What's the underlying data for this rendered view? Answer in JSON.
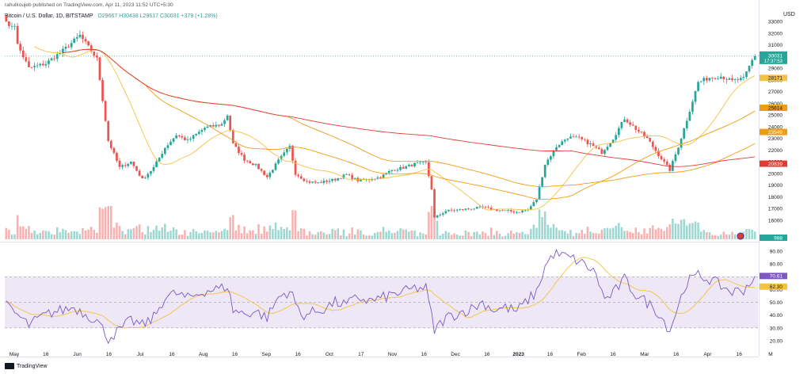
{
  "header": {
    "published": "rahulkoujeb published on TradingView.com, Apr 11, 2023 11:52 UTC+5:30",
    "symbol": "Bitcoin / U.S. Dollar, 1D, BITSTAMP",
    "ohlc": "O29667 H30438 L29617 C30031 +379 (+1.28%)",
    "currency": "USD"
  },
  "footer": {
    "brand": "TradingView"
  },
  "colors": {
    "up": "#26a69a",
    "down": "#ef5350",
    "ma_yellow": "#f5c242",
    "ma_orange": "#f39c12",
    "ma_red": "#e53935",
    "rsi": "#7e57c2",
    "rsi_band": "#ede7f6"
  },
  "chart_data": [
    {
      "type": "candlestick",
      "title": "Bitcoin / U.S. Dollar, 1D, BITSTAMP",
      "ylabel": "USD",
      "ylim": [
        15000,
        33000
      ],
      "yticks": [
        16000,
        17000,
        18000,
        19000,
        20000,
        21000,
        22000,
        23000,
        24000,
        25000,
        26000,
        27000,
        28000,
        29000,
        31000,
        32000,
        33000
      ],
      "x_ticks": [
        "May",
        "16",
        "Jun",
        "16",
        "Jul",
        "16",
        "Aug",
        "16",
        "Sep",
        "16",
        "Oct",
        "17",
        "Nov",
        "16",
        "Dec",
        "16",
        "2023",
        "16",
        "Feb",
        "16",
        "Mar",
        "16",
        "Apr",
        "16",
        "M"
      ],
      "last_price": 30031,
      "last_price_label": "30031",
      "countdown_label": "17:37:53",
      "anchors": [
        [
          0,
          39000
        ],
        [
          4,
          31000
        ],
        [
          8,
          29000
        ],
        [
          14,
          29400
        ],
        [
          20,
          30500
        ],
        [
          26,
          31800
        ],
        [
          32,
          29800
        ],
        [
          36,
          22800
        ],
        [
          40,
          20500
        ],
        [
          44,
          21000
        ],
        [
          48,
          19500
        ],
        [
          52,
          20500
        ],
        [
          56,
          22200
        ],
        [
          60,
          23300
        ],
        [
          64,
          22800
        ],
        [
          70,
          23900
        ],
        [
          76,
          24200
        ],
        [
          78,
          25000
        ],
        [
          80,
          22500
        ],
        [
          84,
          21200
        ],
        [
          88,
          20700
        ],
        [
          92,
          19700
        ],
        [
          96,
          21100
        ],
        [
          100,
          22300
        ],
        [
          102,
          20000
        ],
        [
          106,
          19300
        ],
        [
          110,
          19200
        ],
        [
          116,
          19500
        ],
        [
          120,
          19900
        ],
        [
          124,
          19400
        ],
        [
          128,
          19500
        ],
        [
          132,
          19700
        ],
        [
          136,
          20300
        ],
        [
          140,
          20500
        ],
        [
          144,
          20800
        ],
        [
          148,
          20900
        ],
        [
          150,
          18700
        ],
        [
          151,
          16200
        ],
        [
          155,
          16800
        ],
        [
          160,
          16900
        ],
        [
          164,
          17000
        ],
        [
          168,
          17100
        ],
        [
          172,
          16900
        ],
        [
          176,
          16800
        ],
        [
          180,
          16700
        ],
        [
          184,
          16900
        ],
        [
          187,
          17800
        ],
        [
          190,
          20800
        ],
        [
          194,
          22300
        ],
        [
          198,
          23100
        ],
        [
          202,
          23000
        ],
        [
          206,
          22500
        ],
        [
          210,
          21800
        ],
        [
          214,
          23000
        ],
        [
          218,
          24700
        ],
        [
          222,
          23800
        ],
        [
          226,
          23000
        ],
        [
          230,
          21600
        ],
        [
          234,
          20300
        ],
        [
          237,
          22300
        ],
        [
          240,
          24600
        ],
        [
          244,
          27800
        ],
        [
          248,
          28200
        ],
        [
          252,
          28300
        ],
        [
          256,
          27900
        ],
        [
          260,
          28100
        ],
        [
          264,
          30200
        ]
      ],
      "volume_label": "988",
      "moving_averages": [
        {
          "value": 28171,
          "label": "28171"
        },
        {
          "value": 25614,
          "label": "25614"
        },
        {
          "value": 23549,
          "label": "23549"
        },
        {
          "value": 20839,
          "label": "20839"
        }
      ]
    },
    {
      "type": "line",
      "title": "RSI",
      "ylim": [
        10,
        100
      ],
      "yticks": [
        20.0,
        30.0,
        40.0,
        50.0,
        60.0,
        70.0,
        80.0,
        90.0
      ],
      "ytick_labels": [
        "20.00",
        "30.00",
        "40.00",
        "50.00",
        "60.00",
        "",
        "80.00",
        "90.00"
      ],
      "bands": [
        30,
        70
      ],
      "mid": 50,
      "anchors": [
        [
          0,
          47
        ],
        [
          4,
          40
        ],
        [
          8,
          32
        ],
        [
          12,
          38
        ],
        [
          16,
          42
        ],
        [
          20,
          44
        ],
        [
          24,
          46
        ],
        [
          28,
          41
        ],
        [
          32,
          36
        ],
        [
          36,
          22
        ],
        [
          40,
          28
        ],
        [
          44,
          36
        ],
        [
          48,
          32
        ],
        [
          52,
          38
        ],
        [
          56,
          54
        ],
        [
          60,
          57
        ],
        [
          64,
          53
        ],
        [
          70,
          59
        ],
        [
          76,
          61
        ],
        [
          78,
          63
        ],
        [
          80,
          44
        ],
        [
          84,
          41
        ],
        [
          88,
          43
        ],
        [
          92,
          38
        ],
        [
          96,
          54
        ],
        [
          100,
          59
        ],
        [
          104,
          40
        ],
        [
          108,
          42
        ],
        [
          112,
          45
        ],
        [
          116,
          50
        ],
        [
          120,
          48
        ],
        [
          124,
          54
        ],
        [
          128,
          51
        ],
        [
          132,
          53
        ],
        [
          136,
          56
        ],
        [
          140,
          58
        ],
        [
          144,
          61
        ],
        [
          148,
          61
        ],
        [
          151,
          28
        ],
        [
          155,
          38
        ],
        [
          160,
          42
        ],
        [
          164,
          45
        ],
        [
          168,
          50
        ],
        [
          172,
          44
        ],
        [
          176,
          46
        ],
        [
          180,
          43
        ],
        [
          184,
          52
        ],
        [
          187,
          58
        ],
        [
          190,
          78
        ],
        [
          193,
          88
        ],
        [
          197,
          86
        ],
        [
          201,
          83
        ],
        [
          205,
          78
        ],
        [
          208,
          72
        ],
        [
          211,
          52
        ],
        [
          214,
          57
        ],
        [
          218,
          68
        ],
        [
          222,
          56
        ],
        [
          226,
          50
        ],
        [
          230,
          42
        ],
        [
          234,
          28
        ],
        [
          237,
          48
        ],
        [
          240,
          66
        ],
        [
          244,
          71
        ],
        [
          248,
          68
        ],
        [
          252,
          63
        ],
        [
          256,
          58
        ],
        [
          260,
          60
        ],
        [
          264,
          70
        ]
      ],
      "current_label": "70.61",
      "signal_label": "62.30"
    }
  ]
}
